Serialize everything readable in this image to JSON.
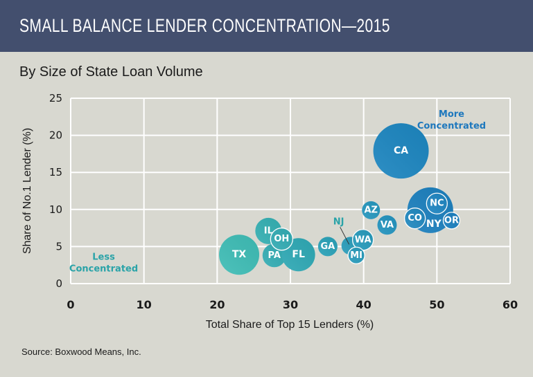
{
  "header": {
    "title": "SMALL BALANCE LENDER CONCENTRATION—2015",
    "subtitle": "By Size of State Loan Volume"
  },
  "footer": {
    "source": "Source: Boxwood Means, Inc."
  },
  "colors": {
    "header_bg": "#434f6e",
    "background": "#d8d8d0",
    "teal": "#3bb5b0",
    "blue": "#1a7fbf",
    "less_label": "#2aa3a8",
    "more_label": "#1e78bd",
    "grid": "#ffffff"
  },
  "chart_data": {
    "type": "scatter",
    "title": "SMALL BALANCE LENDER CONCENTRATION—2015",
    "subtitle": "By Size of State Loan Volume",
    "xlabel": "Total Share of Top 15 Lenders (%)",
    "ylabel": "Share of No.1 Lender (%)",
    "xlim": [
      0,
      60
    ],
    "ylim": [
      0,
      25
    ],
    "xticks": [
      0,
      10,
      20,
      30,
      40,
      50,
      60
    ],
    "yticks": [
      0,
      5,
      10,
      15,
      20,
      25
    ],
    "grid": true,
    "bubble_size_meaning": "Size of state loan volume",
    "annotations": [
      {
        "text": "More Concentrated",
        "lines": [
          "More",
          "Concentrated"
        ],
        "x": 52,
        "y": 22.5,
        "color": "#1e78bd"
      },
      {
        "text": "Less Concentrated",
        "lines": [
          "Less",
          "Concentrated"
        ],
        "x": 4.5,
        "y": 3.2,
        "color": "#2aa3a8"
      }
    ],
    "points": [
      {
        "label": "TX",
        "x": 23.0,
        "y": 3.9,
        "r": 29,
        "color": "#3fbdb6"
      },
      {
        "label": "IL",
        "x": 27.0,
        "y": 7.1,
        "r": 19,
        "color": "#35b0b3"
      },
      {
        "label": "PA",
        "x": 27.8,
        "y": 3.8,
        "r": 17,
        "color": "#34adb4"
      },
      {
        "label": "FL",
        "x": 31.1,
        "y": 3.9,
        "r": 24,
        "color": "#2fa9b5"
      },
      {
        "label": "OH",
        "x": 28.8,
        "y": 6.0,
        "r": 16,
        "color": "#33acb4",
        "outlined": true
      },
      {
        "label": "GA",
        "x": 35.1,
        "y": 5.0,
        "r": 14,
        "color": "#2aa2b8"
      },
      {
        "label": "NJ",
        "x": 38.2,
        "y": 5.1,
        "r": 13,
        "color": "#2a9dbb",
        "external_label": true
      },
      {
        "label": "WA",
        "x": 39.9,
        "y": 5.9,
        "r": 15,
        "color": "#279bbc",
        "outlined": true
      },
      {
        "label": "MI",
        "x": 39.0,
        "y": 3.8,
        "r": 12,
        "color": "#289cbc",
        "outlined": true
      },
      {
        "label": "AZ",
        "x": 41.0,
        "y": 9.9,
        "r": 13,
        "color": "#2597be"
      },
      {
        "label": "VA",
        "x": 43.2,
        "y": 7.9,
        "r": 14,
        "color": "#2494bf"
      },
      {
        "label": "CA",
        "x": 45.1,
        "y": 17.9,
        "r": 40,
        "color": "#1d86c0"
      },
      {
        "label": "NY",
        "x": 49.1,
        "y": 9.9,
        "r": 33,
        "color": "#1c80be",
        "label_dx": 5,
        "label_dy": 20
      },
      {
        "label": "NC",
        "x": 50.0,
        "y": 10.8,
        "r": 15,
        "color": "#1f86c2",
        "outlined": true
      },
      {
        "label": "CO",
        "x": 47.0,
        "y": 8.8,
        "r": 15,
        "color": "#2289c0",
        "outlined": true
      },
      {
        "label": "OR",
        "x": 52.0,
        "y": 8.5,
        "r": 12,
        "color": "#1a7fbf",
        "outlined": true
      }
    ]
  }
}
